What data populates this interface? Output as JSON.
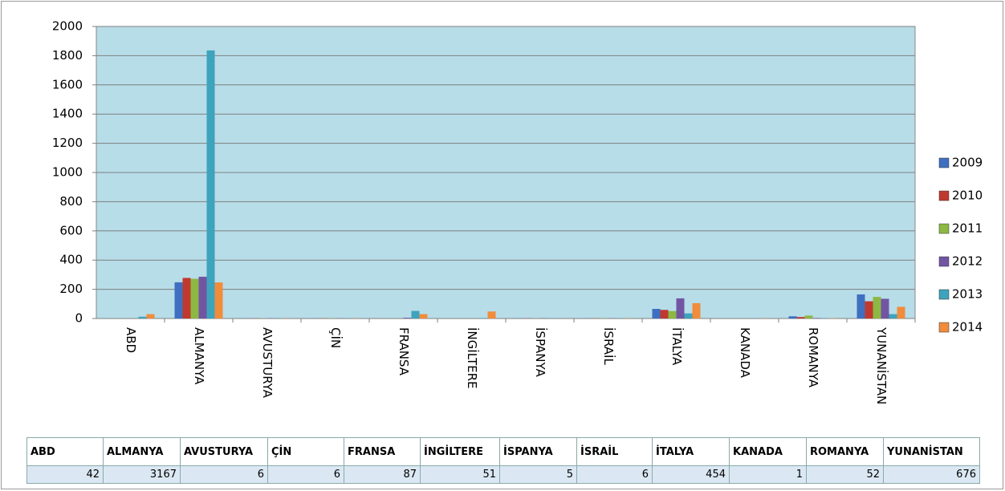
{
  "chart_data": {
    "type": "bar",
    "categories": [
      "ABD",
      "ALMANYA",
      "AVUSTURYA",
      "ÇİN",
      "FRANSA",
      "İNGİLTERE",
      "İSPANYA",
      "İSRAİL",
      "İTALYA",
      "KANADA",
      "ROMANYA",
      "YUNANİSTAN"
    ],
    "series": [
      {
        "name": "2009",
        "color": "#3f6fc0",
        "values": [
          0,
          248,
          1,
          1,
          0,
          0,
          1,
          1,
          66,
          0,
          15,
          165
        ]
      },
      {
        "name": "2010",
        "color": "#c0392f",
        "values": [
          0,
          278,
          1,
          1,
          0,
          0,
          1,
          1,
          59,
          0,
          10,
          118
        ]
      },
      {
        "name": "2011",
        "color": "#8db843",
        "values": [
          0,
          272,
          1,
          1,
          0,
          0,
          1,
          1,
          51,
          0,
          20,
          148
        ]
      },
      {
        "name": "2012",
        "color": "#7155a3",
        "values": [
          0,
          286,
          1,
          1,
          5,
          0,
          1,
          1,
          138,
          0,
          3,
          135
        ]
      },
      {
        "name": "2013",
        "color": "#3ea3bc",
        "values": [
          12,
          1836,
          1,
          1,
          52,
          3,
          1,
          1,
          35,
          0,
          2,
          30
        ]
      },
      {
        "name": "2014",
        "color": "#f08c3c",
        "values": [
          30,
          247,
          1,
          1,
          30,
          48,
          0,
          1,
          105,
          1,
          2,
          80
        ]
      }
    ],
    "ylim": [
      0,
      2000
    ],
    "yticks": [
      0,
      200,
      400,
      600,
      800,
      1000,
      1200,
      1400,
      1600,
      1800,
      2000
    ],
    "grid": true,
    "legend": "right"
  },
  "table": {
    "values": [
      42,
      3167,
      6,
      6,
      87,
      51,
      5,
      6,
      454,
      1,
      52,
      676
    ]
  }
}
